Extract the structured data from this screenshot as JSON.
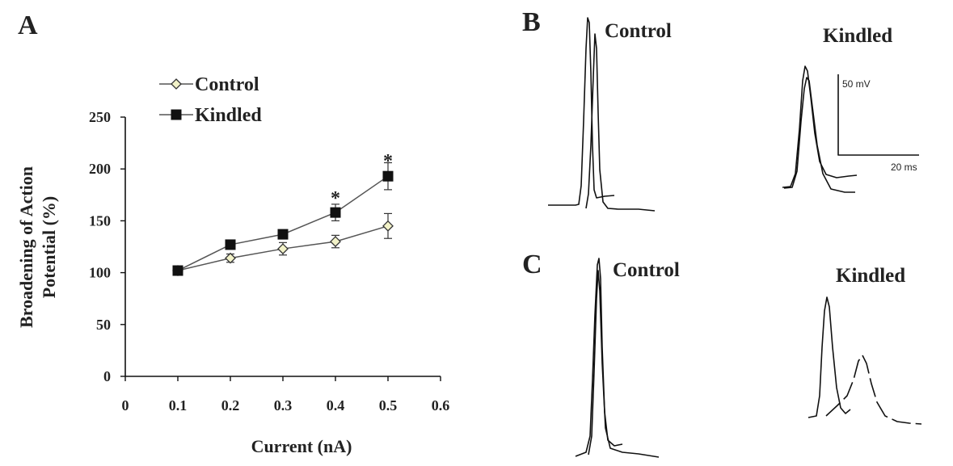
{
  "panels": {
    "a": "A",
    "b": "B",
    "c": "C"
  },
  "chart_data": {
    "type": "line",
    "xlabel": "Current (nA)",
    "ylabel": "Broadening of Action Potential (%)",
    "ylabel_lines": [
      "Broadening of Action",
      "Potential (%)"
    ],
    "xlim": [
      0,
      0.6
    ],
    "ylim": [
      0,
      250
    ],
    "xticks": [
      0,
      0.1,
      0.2,
      0.3,
      0.4,
      0.5,
      0.6
    ],
    "xtick_labels": [
      "0",
      "0.1",
      "0.2",
      "0.3",
      "0.4",
      "0.5",
      "0.6"
    ],
    "yticks": [
      0,
      50,
      100,
      150,
      200,
      250
    ],
    "ytick_labels": [
      "0",
      "50",
      "100",
      "150",
      "200",
      "250"
    ],
    "legend_position": "top-left",
    "x": [
      0.1,
      0.2,
      0.3,
      0.4,
      0.5
    ],
    "series": [
      {
        "name": "Control",
        "marker": "diamond-open",
        "color": "#f2f2c8",
        "values": [
          102,
          114,
          123,
          130,
          145
        ],
        "errors": [
          2,
          4,
          6,
          6,
          12
        ]
      },
      {
        "name": "Kindled",
        "marker": "square-filled",
        "color": "#111111",
        "values": [
          102,
          127,
          137,
          158,
          193
        ],
        "errors": [
          2,
          3,
          3,
          8,
          13
        ]
      }
    ],
    "annotations": [
      {
        "text": "*",
        "x": 0.4,
        "y": 172
      },
      {
        "text": "*",
        "x": 0.5,
        "y": 208
      }
    ]
  },
  "traces": {
    "b_control": "Control",
    "b_kindled": "Kindled",
    "c_control": "Control",
    "c_kindled": "Kindled",
    "scale_voltage": "50 mV",
    "scale_time": "20 ms"
  }
}
